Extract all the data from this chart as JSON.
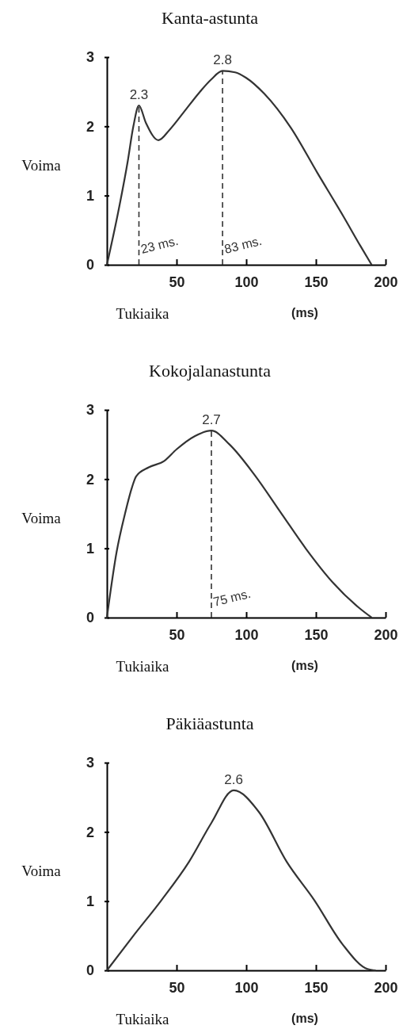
{
  "chart_data": [
    {
      "type": "line",
      "title": "Kanta-astunta",
      "xlabel": "Tukiaika",
      "ylabel": "Voima",
      "xlim": [
        0,
        200
      ],
      "xticks": [
        50,
        100,
        150,
        200
      ],
      "ylim": [
        0,
        3
      ],
      "yticks": [
        0,
        1,
        2,
        3
      ],
      "grid": false,
      "marker": "none",
      "line_style": "solid",
      "series": [
        {
          "color": "#333333",
          "x": [
            0,
            8,
            15,
            19,
            23,
            28,
            37,
            45,
            55,
            66,
            75,
            83,
            92,
            100,
            113,
            132,
            151,
            170,
            182,
            190
          ],
          "values": [
            0,
            0.75,
            1.5,
            2.0,
            2.3,
            2.05,
            1.8,
            1.95,
            2.2,
            2.48,
            2.68,
            2.8,
            2.78,
            2.7,
            2.47,
            1.98,
            1.33,
            0.69,
            0.27,
            0
          ]
        }
      ],
      "ref_lines": [
        {
          "axis": "x",
          "value": 23,
          "label": "23 ms.",
          "line_style": "dashed",
          "color": "#333333"
        },
        {
          "axis": "x",
          "value": 83,
          "label": "83 ms.",
          "line_style": "dashed",
          "color": "#333333"
        }
      ],
      "annotations": [
        {
          "text": "2.3",
          "x": 23,
          "y": 2.3
        },
        {
          "text": "2.8",
          "x": 83,
          "y": 2.8
        },
        "(ms)"
      ]
    },
    {
      "type": "line",
      "title": "Kokojalanastunta",
      "xlabel": "Tukiaika",
      "ylabel": "Voima",
      "xlim": [
        0,
        200
      ],
      "xticks": [
        50,
        100,
        150,
        200
      ],
      "ylim": [
        0,
        3
      ],
      "yticks": [
        0,
        1,
        2,
        3
      ],
      "grid": false,
      "marker": "none",
      "line_style": "solid",
      "series": [
        {
          "color": "#333333",
          "x": [
            0,
            7,
            13,
            18,
            21,
            30,
            41,
            50,
            63,
            75,
            88,
            106,
            125,
            143,
            162,
            181,
            190
          ],
          "values": [
            0,
            0.95,
            1.5,
            1.88,
            2.04,
            2.17,
            2.26,
            2.43,
            2.62,
            2.7,
            2.5,
            2.06,
            1.51,
            0.99,
            0.51,
            0.14,
            0
          ]
        }
      ],
      "ref_lines": [
        {
          "axis": "x",
          "value": 75,
          "label": "75 ms.",
          "line_style": "dashed",
          "color": "#333333"
        }
      ],
      "annotations": [
        {
          "text": "2.7",
          "x": 75,
          "y": 2.7
        },
        "(ms)"
      ]
    },
    {
      "type": "line",
      "title": "Päkiäastunta",
      "xlabel": "Tukiaika",
      "ylabel": "Voima",
      "xlim": [
        0,
        200
      ],
      "xticks": [
        50,
        100,
        150,
        200
      ],
      "ylim": [
        0,
        3
      ],
      "yticks": [
        0,
        1,
        2,
        3
      ],
      "grid": false,
      "marker": "none",
      "line_style": "solid",
      "series": [
        {
          "color": "#333333",
          "x": [
            0,
            19,
            39,
            59,
            75,
            91,
            109,
            129,
            149,
            169,
            187,
            193
          ],
          "values": [
            0,
            0.5,
            1.01,
            1.57,
            2.13,
            2.6,
            2.29,
            1.57,
            1.01,
            0.38,
            0.02,
            0
          ]
        }
      ],
      "annotations": [
        {
          "text": "2.6",
          "x": 91,
          "y": 2.6
        },
        "(ms)"
      ]
    }
  ]
}
